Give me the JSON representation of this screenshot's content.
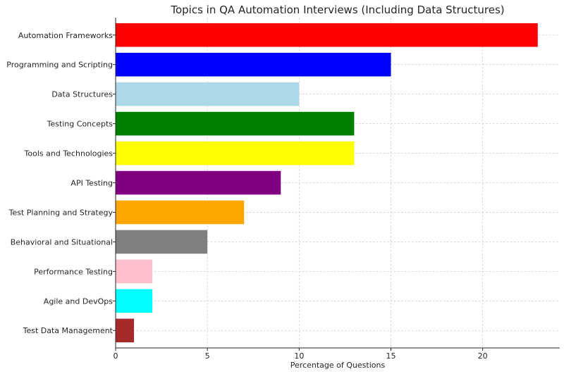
{
  "chart_data": {
    "type": "bar",
    "orientation": "horizontal",
    "title": "Topics in QA Automation Interviews (Including Data Structures)",
    "xlabel": "Percentage of Questions",
    "ylabel": "",
    "xlim": [
      0,
      24.2
    ],
    "xticks": [
      0,
      5,
      10,
      15,
      20
    ],
    "grid": true,
    "categories": [
      "Automation Frameworks",
      "Programming and Scripting",
      "Data Structures",
      "Testing Concepts",
      "Tools and Technologies",
      "API Testing",
      "Test Planning and Strategy",
      "Behavioral and Situational",
      "Performance Testing",
      "Agile and DevOps",
      "Test Data Management"
    ],
    "values": [
      23,
      15,
      10,
      13,
      13,
      9,
      7,
      5,
      2,
      2,
      1
    ],
    "colors": [
      "#ff0000",
      "#0000ff",
      "#add8e6",
      "#008000",
      "#ffff00",
      "#800080",
      "#ffa500",
      "#808080",
      "#ffc0cb",
      "#00ffff",
      "#a52a2a"
    ]
  }
}
